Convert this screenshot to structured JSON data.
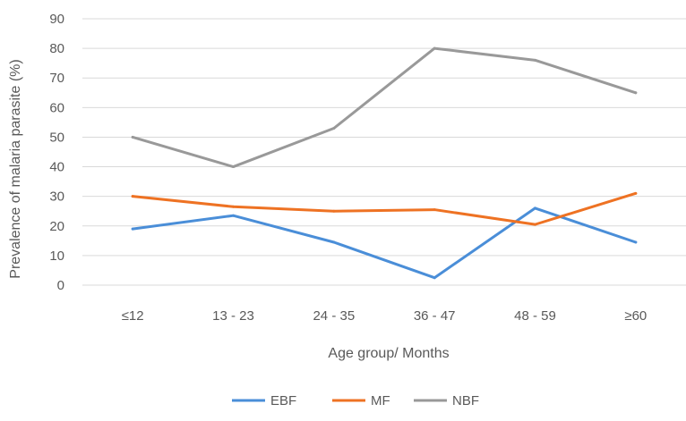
{
  "chart_data": {
    "type": "line",
    "title": "",
    "xlabel": "Age group/ Months",
    "ylabel": "Prevalence of malaria parasite  (%)",
    "categories": [
      "≤12",
      "13 - 23",
      "24 - 35",
      "36 - 47",
      "48 - 59",
      "≥60"
    ],
    "ylim": [
      0,
      90
    ],
    "yticks": [
      0,
      10,
      20,
      30,
      40,
      50,
      60,
      70,
      80,
      90
    ],
    "grid": true,
    "legend_position": "bottom",
    "series": [
      {
        "name": "EBF",
        "color": "#4a8ed8",
        "values": [
          19,
          23.5,
          14.5,
          2.5,
          26,
          14.5
        ]
      },
      {
        "name": "MF",
        "color": "#ee7223",
        "values": [
          30,
          26.5,
          25,
          25.5,
          20.5,
          31
        ]
      },
      {
        "name": "NBF",
        "color": "#999999",
        "values": [
          50,
          40,
          53,
          80,
          76,
          65
        ]
      }
    ]
  }
}
